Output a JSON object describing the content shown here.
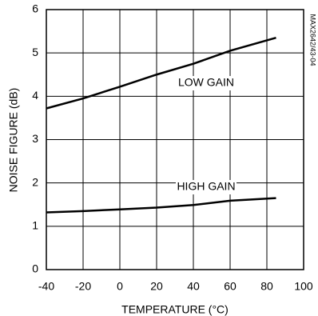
{
  "chart_data": {
    "type": "line",
    "xlabel": "TEMPERATURE (°C)",
    "ylabel": "NOISE FIGURE (dB)",
    "annotation": "MAX2642/43-04",
    "x": [
      -40,
      -20,
      0,
      20,
      40,
      60,
      85
    ],
    "series": [
      {
        "name": "LOW GAIN",
        "color": "#000000",
        "values": [
          3.72,
          3.95,
          4.22,
          4.5,
          4.75,
          5.05,
          5.35
        ]
      },
      {
        "name": "HIGH GAIN",
        "color": "#000000",
        "values": [
          1.32,
          1.35,
          1.39,
          1.43,
          1.49,
          1.59,
          1.65
        ]
      }
    ],
    "xlim": [
      -40,
      100
    ],
    "xticks": [
      -40,
      -20,
      0,
      20,
      40,
      60,
      80,
      100
    ],
    "ylim": [
      0,
      6
    ],
    "yticks": [
      0,
      1,
      2,
      3,
      4,
      5,
      6
    ],
    "grid": true
  }
}
